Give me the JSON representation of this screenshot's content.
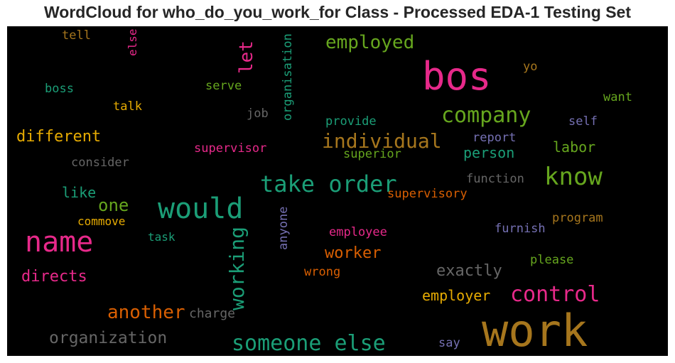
{
  "chart_data": {
    "type": "wordcloud",
    "title": "WordCloud for who_do_you_work_for Class - Processed EDA-1 Testing Set",
    "background": "#000000",
    "colormap": "Dark2",
    "words": [
      {
        "text": "work",
        "color": "#a6761d",
        "vertical": false
      },
      {
        "text": "bos",
        "color": "#e7298a",
        "vertical": false
      },
      {
        "text": "would",
        "color": "#1b9e77",
        "vertical": false
      },
      {
        "text": "name",
        "color": "#e7298a",
        "vertical": false
      },
      {
        "text": "take order",
        "color": "#1b9e77",
        "vertical": false
      },
      {
        "text": "know",
        "color": "#66a61e",
        "vertical": false
      },
      {
        "text": "company",
        "color": "#66a61e",
        "vertical": false
      },
      {
        "text": "someone else",
        "color": "#1b9e77",
        "vertical": false
      },
      {
        "text": "control",
        "color": "#e7298a",
        "vertical": false
      },
      {
        "text": "working",
        "color": "#1b9e77",
        "vertical": true
      },
      {
        "text": "individual",
        "color": "#a6761d",
        "vertical": false
      },
      {
        "text": "another",
        "color": "#d95f02",
        "vertical": false
      },
      {
        "text": "employed",
        "color": "#66a61e",
        "vertical": false
      },
      {
        "text": "organization",
        "color": "#666666",
        "vertical": false
      },
      {
        "text": "let",
        "color": "#e7298a",
        "vertical": true
      },
      {
        "text": "one",
        "color": "#66a61e",
        "vertical": false
      },
      {
        "text": "exactly",
        "color": "#666666",
        "vertical": false
      },
      {
        "text": "directs",
        "color": "#e7298a",
        "vertical": false
      },
      {
        "text": "different",
        "color": "#e6ab02",
        "vertical": false
      },
      {
        "text": "worker",
        "color": "#d95f02",
        "vertical": false
      },
      {
        "text": "employer",
        "color": "#e6ab02",
        "vertical": false
      },
      {
        "text": "person",
        "color": "#1b9e77",
        "vertical": false
      },
      {
        "text": "labor",
        "color": "#66a61e",
        "vertical": false
      },
      {
        "text": "like",
        "color": "#1b9e77",
        "vertical": false
      },
      {
        "text": "supervisory",
        "color": "#d95f02",
        "vertical": false
      },
      {
        "text": "charge",
        "color": "#666666",
        "vertical": false
      },
      {
        "text": "organisation",
        "color": "#1b9e77",
        "vertical": true
      },
      {
        "text": "anyone",
        "color": "#7570b3",
        "vertical": true
      },
      {
        "text": "supervisor",
        "color": "#e7298a",
        "vertical": false
      },
      {
        "text": "provide",
        "color": "#1b9e77",
        "vertical": false
      },
      {
        "text": "superior",
        "color": "#66a61e",
        "vertical": false
      },
      {
        "text": "report",
        "color": "#7570b3",
        "vertical": false
      },
      {
        "text": "self",
        "color": "#7570b3",
        "vertical": false
      },
      {
        "text": "function",
        "color": "#666666",
        "vertical": false
      },
      {
        "text": "program",
        "color": "#a6761d",
        "vertical": false
      },
      {
        "text": "furnish",
        "color": "#7570b3",
        "vertical": false
      },
      {
        "text": "please",
        "color": "#66a61e",
        "vertical": false
      },
      {
        "text": "employee",
        "color": "#e7298a",
        "vertical": false
      },
      {
        "text": "wrong",
        "color": "#d95f02",
        "vertical": false
      },
      {
        "text": "commove",
        "color": "#e6ab02",
        "vertical": false
      },
      {
        "text": "task",
        "color": "#1b9e77",
        "vertical": false
      },
      {
        "text": "consider",
        "color": "#666666",
        "vertical": false
      },
      {
        "text": "talk",
        "color": "#e6ab02",
        "vertical": false
      },
      {
        "text": "boss",
        "color": "#1b9e77",
        "vertical": false
      },
      {
        "text": "tell",
        "color": "#a6761d",
        "vertical": false
      },
      {
        "text": "else",
        "color": "#e7298a",
        "vertical": true
      },
      {
        "text": "serve",
        "color": "#66a61e",
        "vertical": false
      },
      {
        "text": "job",
        "color": "#666666",
        "vertical": false
      },
      {
        "text": "want",
        "color": "#66a61e",
        "vertical": false
      },
      {
        "text": "yo",
        "color": "#a6761d",
        "vertical": false
      },
      {
        "text": "say",
        "color": "#7570b3",
        "vertical": false
      }
    ]
  }
}
